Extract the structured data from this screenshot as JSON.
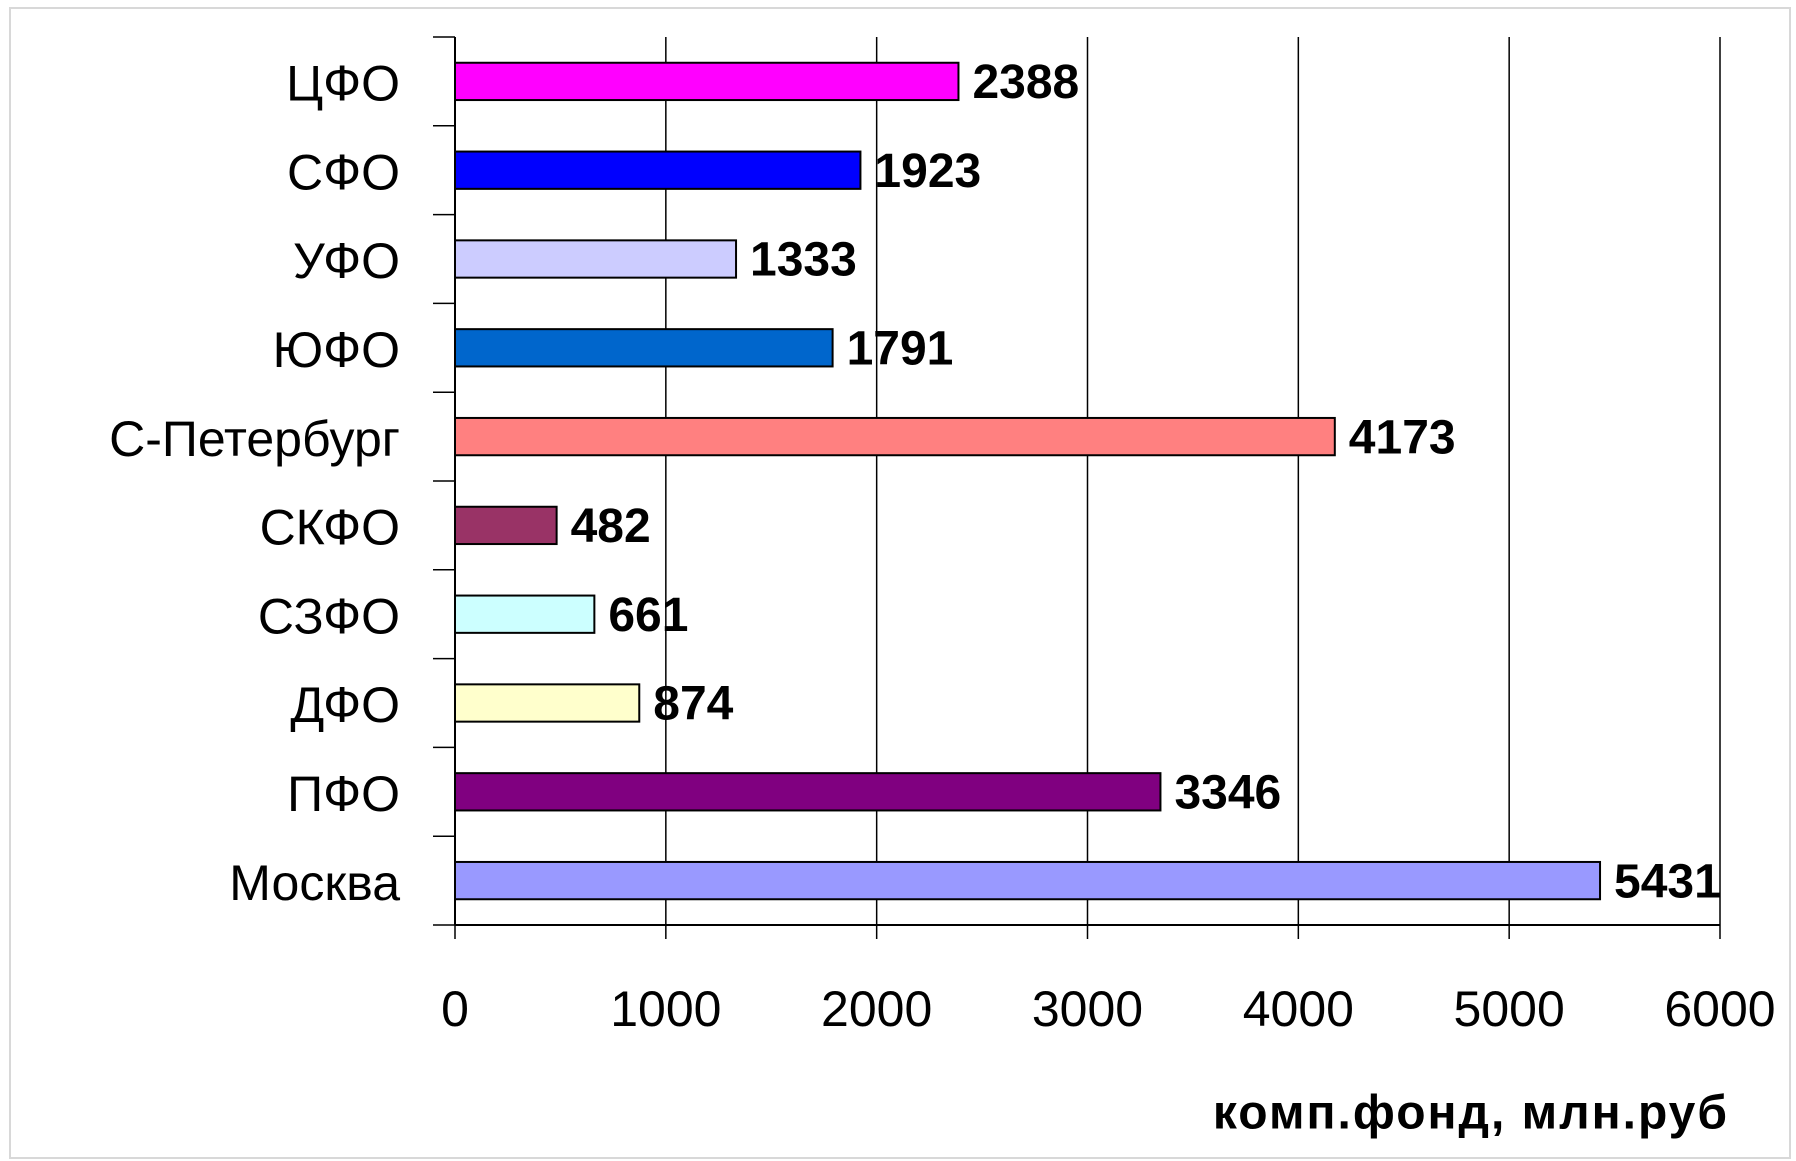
{
  "chart_data": {
    "type": "barh",
    "categories": [
      "ЦФО",
      "СФО",
      "УФО",
      "ЮФО",
      "С-Петербург",
      "СКФО",
      "СЗФО",
      "ДФО",
      "ПФО",
      "Москва"
    ],
    "values": [
      2388,
      1923,
      1333,
      1791,
      4173,
      482,
      661,
      874,
      3346,
      5431
    ],
    "colors": [
      "#ff00ff",
      "#0000ff",
      "#ccccff",
      "#0066cc",
      "#ff8080",
      "#993366",
      "#ccffff",
      "#ffffcc",
      "#800080",
      "#9999ff"
    ],
    "xlabel": "комп.фонд, млн.руб",
    "xlim": [
      0,
      6000
    ],
    "xticks": [
      0,
      1000,
      2000,
      3000,
      4000,
      5000,
      6000
    ],
    "grid": true
  }
}
